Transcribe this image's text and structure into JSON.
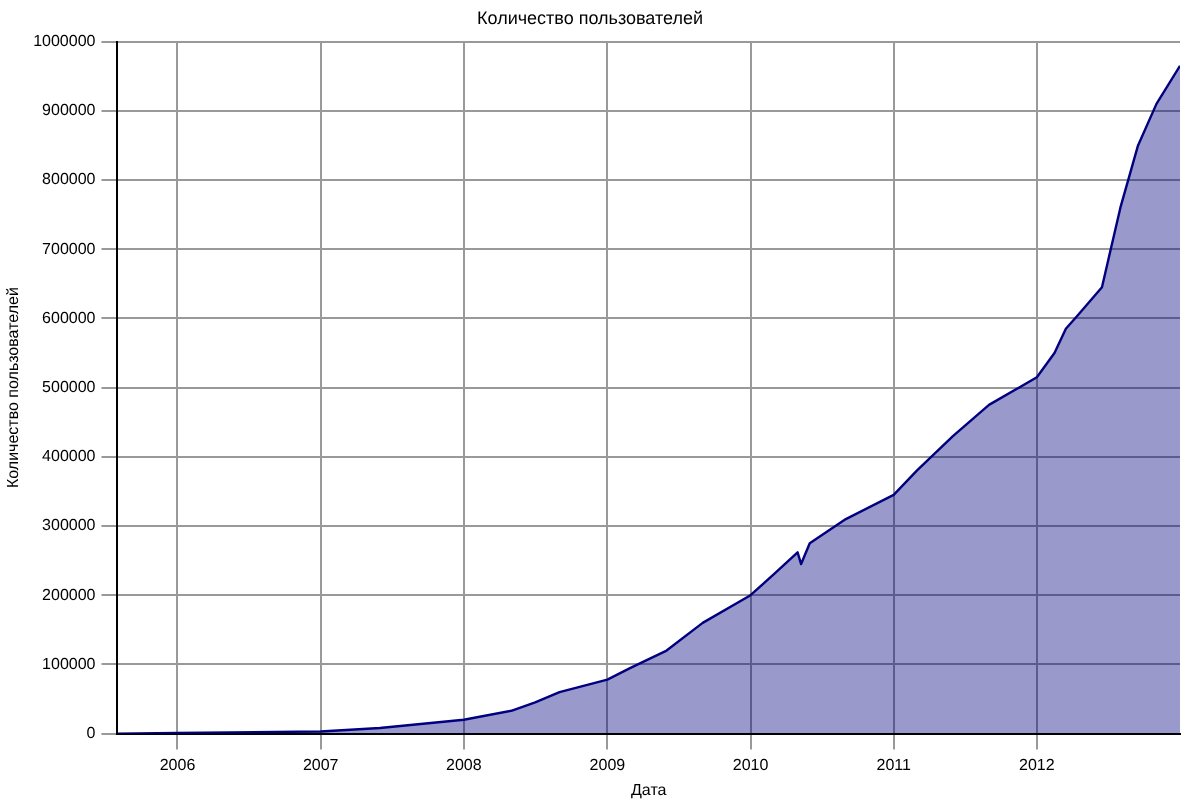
{
  "chart_data": {
    "type": "area",
    "title": "Количество пользователей",
    "xlabel": "Дата",
    "ylabel": "Количество пользователей",
    "x": [
      "2005-08-01",
      "2006-01-01",
      "2007-01-01",
      "2007-06-01",
      "2008-01-01",
      "2008-05-01",
      "2008-07-01",
      "2008-09-01",
      "2009-01-01",
      "2009-03-01",
      "2009-06-01",
      "2009-09-01",
      "2010-01-01",
      "2010-03-01",
      "2010-05-01",
      "2010-05-10",
      "2010-06-01",
      "2010-09-01",
      "2011-01-01",
      "2011-03-01",
      "2011-06-01",
      "2011-09-01",
      "2012-01-01",
      "2012-02-15",
      "2012-03-15",
      "2012-04-15",
      "2012-06-15",
      "2012-08-01",
      "2012-09-15",
      "2012-11-01",
      "2012-12-31"
    ],
    "series": [
      {
        "color": "#000080",
        "values": [
          0,
          1000,
          3000,
          8000,
          20000,
          33000,
          45000,
          60000,
          78000,
          95000,
          120000,
          160000,
          200000,
          230000,
          262000,
          245000,
          275000,
          310000,
          345000,
          380000,
          430000,
          475000,
          515000,
          550000,
          585000,
          605000,
          645000,
          760000,
          850000,
          910000,
          965000
        ]
      }
    ],
    "xlim": [
      "2005-08-01",
      "2012-12-31"
    ],
    "xticks": [
      "2006",
      "2007",
      "2008",
      "2009",
      "2010",
      "2011",
      "2012"
    ],
    "ylim": [
      0,
      1000000
    ],
    "yticks": [
      0,
      100000,
      200000,
      300000,
      400000,
      500000,
      600000,
      700000,
      800000,
      900000,
      1000000
    ],
    "grid": true,
    "legend": false,
    "marker": "none",
    "line_style": "solid"
  }
}
